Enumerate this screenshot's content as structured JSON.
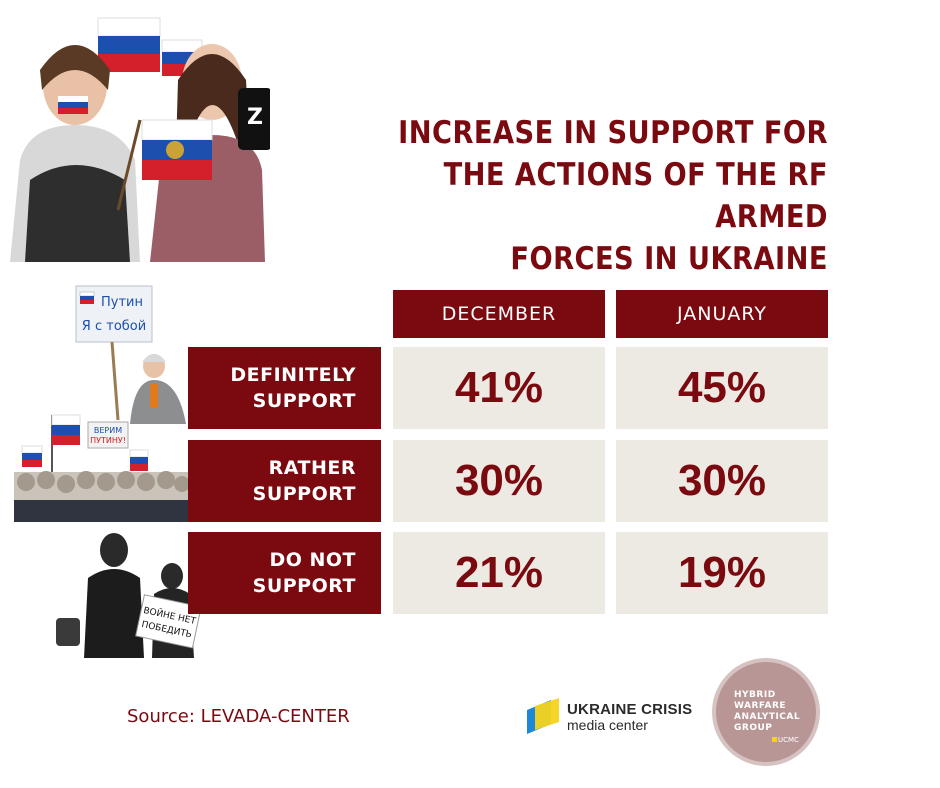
{
  "title": {
    "line1": "INCREASE IN SUPPORT FOR",
    "line2": "THE ACTIONS OF THE RF ARMED",
    "line3": "FORCES IN UKRAINE"
  },
  "chart_data": {
    "type": "table",
    "columns": [
      "DECEMBER",
      "JANUARY"
    ],
    "rows": [
      {
        "label_line1": "DEFINITELY",
        "label_line2": "SUPPORT",
        "values": [
          41,
          45
        ],
        "display": [
          "41%",
          "45%"
        ]
      },
      {
        "label_line1": "RATHER",
        "label_line2": "SUPPORT",
        "values": [
          30,
          30
        ],
        "display": [
          "30%",
          "30%"
        ]
      },
      {
        "label_line1": "DO NOT",
        "label_line2": "SUPPORT",
        "values": [
          21,
          19
        ],
        "display": [
          "21%",
          "19%"
        ]
      }
    ]
  },
  "signs": {
    "putin_line1": "Путин",
    "putin_line2": "Я с тобой",
    "verim_line1": "ВЕРИМ",
    "verim_line2": "ПУТИНУ!",
    "war_sign_line1": "ВОЙНЕ НЕТ",
    "war_sign_line2": "ПОБЕДИТЬ",
    "phone_letter": "Z"
  },
  "footer": {
    "source": "Source: LEVADA-CENTER",
    "ucmc_line1": "UKRAINE CRISIS",
    "ucmc_line2": "media center",
    "hwag_line1": "HYBRID",
    "hwag_line2": "WARFARE",
    "hwag_line3": "ANALYTICAL",
    "hwag_line4": "GROUP",
    "hwag_sub": "UCMC"
  },
  "colors": {
    "brand": "#7a0a0f",
    "cell_bg": "#ede9e3",
    "hwag": "#b99696",
    "ucmc_yellow": "#f5d31b",
    "ucmc_blue": "#1e88d8"
  }
}
